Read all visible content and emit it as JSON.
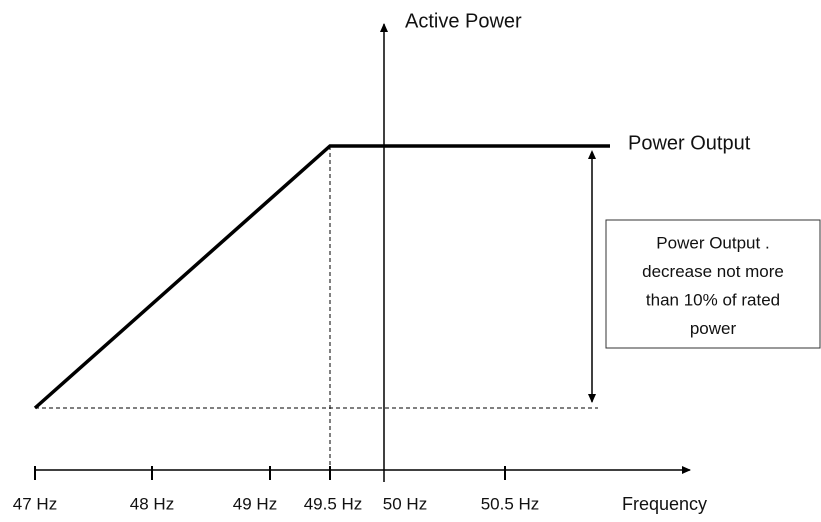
{
  "y_axis": {
    "label": "Active Power"
  },
  "x_axis": {
    "label": "Frequency",
    "ticks": [
      "47 Hz",
      "48 Hz",
      "49 Hz",
      "49.5 Hz",
      "50 Hz",
      "50.5 Hz"
    ]
  },
  "curve": {
    "label": "Power Output"
  },
  "note": {
    "lines": [
      "Power Output .",
      "decrease not more",
      "than 10% of rated",
      "power"
    ]
  }
}
